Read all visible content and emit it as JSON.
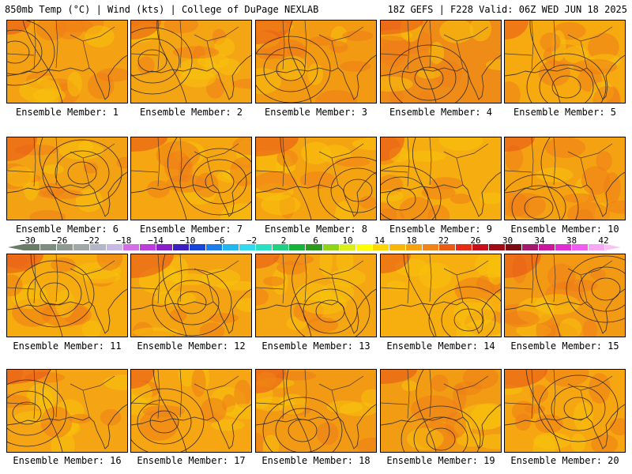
{
  "header": {
    "left": "850mb Temp (°C) | Wind (kts) | College of DuPage NEXLAB",
    "right": "18Z GEFS | F228 Valid: 06Z WED JUN 18 2025"
  },
  "members": [
    {
      "caption": "Ensemble Member: 1",
      "base": "#f4a213"
    },
    {
      "caption": "Ensemble Member: 2",
      "base": "#f3a514"
    },
    {
      "caption": "Ensemble Member: 3",
      "base": "#f29a12"
    },
    {
      "caption": "Ensemble Member: 4",
      "base": "#ef8c18"
    },
    {
      "caption": "Ensemble Member: 5",
      "base": "#f6aa10"
    },
    {
      "caption": "Ensemble Member: 6",
      "base": "#f3a213"
    },
    {
      "caption": "Ensemble Member: 7",
      "base": "#f6a611"
    },
    {
      "caption": "Ensemble Member: 8",
      "base": "#f5a411"
    },
    {
      "caption": "Ensemble Member: 9",
      "base": "#f6ad10"
    },
    {
      "caption": "Ensemble Member: 10",
      "base": "#f5a212"
    },
    {
      "caption": "Ensemble Member: 11",
      "base": "#f6ac0f"
    },
    {
      "caption": "Ensemble Member: 12",
      "base": "#f4a412"
    },
    {
      "caption": "Ensemble Member: 13",
      "base": "#f4a613"
    },
    {
      "caption": "Ensemble Member: 14",
      "base": "#f7ae0f"
    },
    {
      "caption": "Ensemble Member: 15",
      "base": "#f39a14"
    },
    {
      "caption": "Ensemble Member: 16",
      "base": "#f5a513"
    },
    {
      "caption": "Ensemble Member: 17",
      "base": "#f5a612"
    },
    {
      "caption": "Ensemble Member: 18",
      "base": "#f29a14"
    },
    {
      "caption": "Ensemble Member: 19",
      "base": "#f29c13"
    },
    {
      "caption": "Ensemble Member: 20",
      "base": "#f6a611"
    }
  ],
  "colorbar": {
    "labels": [
      "−30",
      "−26",
      "−22",
      "−18",
      "−14",
      "−10",
      "−6",
      "−2",
      "2",
      "6",
      "10",
      "14",
      "18",
      "22",
      "26",
      "30",
      "34",
      "38",
      "42"
    ],
    "colors": [
      "#6a7b6a",
      "#7e8d7e",
      "#8f9a90",
      "#9fa7a7",
      "#b3b6c6",
      "#c7b9e6",
      "#d46fe6",
      "#bb3ed8",
      "#8a21c8",
      "#3e1fbf",
      "#1846d8",
      "#1c7ee8",
      "#25b6ef",
      "#35d9f0",
      "#2ae0c3",
      "#22cf84",
      "#16b43b",
      "#2c9b1d",
      "#8fd31a",
      "#d9ef18",
      "#ffff00",
      "#ffd700",
      "#f8b60c",
      "#f6a10f",
      "#f08418",
      "#ea5b13",
      "#e42b15",
      "#c71018",
      "#9e0a16",
      "#7c0b13",
      "#a31a6c",
      "#c8199d",
      "#e12ed2",
      "#f05ef0",
      "#f7a8f4"
    ]
  }
}
